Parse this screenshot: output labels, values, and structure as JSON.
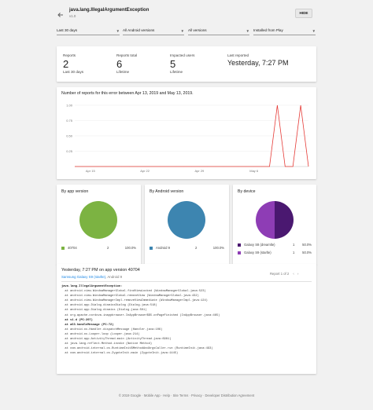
{
  "header": {
    "title": "java.lang.IllegalArgumentException",
    "version": "v1.0",
    "hide_label": "HIDE"
  },
  "filters": [
    {
      "label": "Last 30 days"
    },
    {
      "label": "All Android versions"
    },
    {
      "label": "All versions"
    },
    {
      "label": "Installed from Play"
    }
  ],
  "stats": {
    "reports_label": "Reports",
    "reports_value": "2",
    "reports_sub": "Last 30 days",
    "reports_total_label": "Reports total",
    "reports_total_value": "6",
    "reports_total_sub": "Lifetime",
    "impacted_label": "Impacted users",
    "impacted_value": "5",
    "impacted_sub": "Lifetime",
    "last_reported_label": "Last reported",
    "last_reported_value": "Yesterday, 7:27 PM"
  },
  "chart_data": {
    "type": "line",
    "title": "Number of reports for this error between Apr 13, 2019 and May 13, 2019.",
    "xlabel": "",
    "ylabel": "",
    "x_ticks": [
      "Apr 15",
      "Apr 22",
      "Apr 29",
      "May 6"
    ],
    "y_ticks": [
      "1.00",
      "0.75",
      "0.50",
      "0.25",
      "0"
    ],
    "ylim": [
      0,
      1.0
    ],
    "series": [
      {
        "color": "#e53935",
        "x": [
          "Apr 13",
          "Apr 14",
          "Apr 15",
          "Apr 16",
          "Apr 17",
          "Apr 18",
          "Apr 19",
          "Apr 20",
          "Apr 21",
          "Apr 22",
          "Apr 23",
          "Apr 24",
          "Apr 25",
          "Apr 26",
          "Apr 27",
          "Apr 28",
          "Apr 29",
          "Apr 30",
          "May 1",
          "May 2",
          "May 3",
          "May 4",
          "May 5",
          "May 6",
          "May 7",
          "May 8",
          "May 9",
          "May 10",
          "May 11",
          "May 12",
          "May 13"
        ],
        "values": [
          0,
          0,
          0,
          0,
          0,
          0,
          0,
          0,
          0,
          0,
          0,
          0,
          0,
          0,
          0,
          0,
          0,
          0,
          0,
          0,
          0,
          0,
          0,
          0,
          0,
          0,
          1,
          0,
          0,
          1,
          0
        ]
      }
    ]
  },
  "pies": [
    {
      "title": "By app version",
      "color": "#7cb342",
      "legend_name": "40704",
      "legend_count": "2",
      "legend_pct": "100.0%"
    },
    {
      "title": "By Android version",
      "color": "#3d85b0",
      "legend_name": "Android 9",
      "legend_count": "2",
      "legend_pct": "100.0%"
    },
    {
      "title": "By device",
      "rows": [
        {
          "color": "#4a1870",
          "name": "Galaxy S8 (dreamlte)",
          "count": "1",
          "pct": "50.0%"
        },
        {
          "color": "#8e3db5",
          "name": "Galaxy S9 (starlte)",
          "count": "1",
          "pct": "50.0%"
        }
      ]
    }
  ],
  "report": {
    "title": "Yesterday, 7:27 PM on app version 40704",
    "device_link": "Samsung Galaxy S9 (starlte)",
    "android": ", Android 9",
    "pager": "Report 1 of 2",
    "trace_lines": [
      {
        "t": "java.lang.IllegalArgumentException:",
        "b": true
      },
      {
        "t": "  at android.view.WindowManagerGlobal.findViewLocked (WindowManagerGlobal.java:523)",
        "b": false
      },
      {
        "t": "  at android.view.WindowManagerGlobal.removeView (WindowManagerGlobal.java:432)",
        "b": false
      },
      {
        "t": "  at android.view.WindowManagerImpl.removeViewImmediate (WindowManagerImpl.java:124)",
        "b": false
      },
      {
        "t": "  at android.app.Dialog.dismissDialog (Dialog.java:518)",
        "b": false
      },
      {
        "t": "  at android.app.Dialog.dismiss (Dialog.java:501)",
        "b": false
      },
      {
        "t": "  at org.apache.cordova.inappbrowser.InAppBrowser$$5.onPageFinished (InAppBrowser.java:465)",
        "b": false
      },
      {
        "t": "  at v1.d (PC:207)",
        "b": true
      },
      {
        "t": "  at a63.handleMessage (PC:72)",
        "b": true
      },
      {
        "t": "  at android.os.Handler.dispatchMessage (Handler.java:106)",
        "b": false
      },
      {
        "t": "  at android.os.Looper.loop (Looper.java:214)",
        "b": false
      },
      {
        "t": "  at android.app.ActivityThread.main (ActivityThread.java:6981)",
        "b": false
      },
      {
        "t": "  at java.lang.reflect.Method.invoke (Native Method)",
        "b": false
      },
      {
        "t": "  at com.android.internal.os.RuntimeInit$MethodAndArgsCaller.run (RuntimeInit.java:493)",
        "b": false
      },
      {
        "t": "  at com.android.internal.os.ZygoteInit.main (ZygoteInit.java:1445)",
        "b": false
      }
    ]
  },
  "footer": "© 2019 Google · Mobile App · Help · Site Terms · Privacy · Developer Distribution Agreement"
}
